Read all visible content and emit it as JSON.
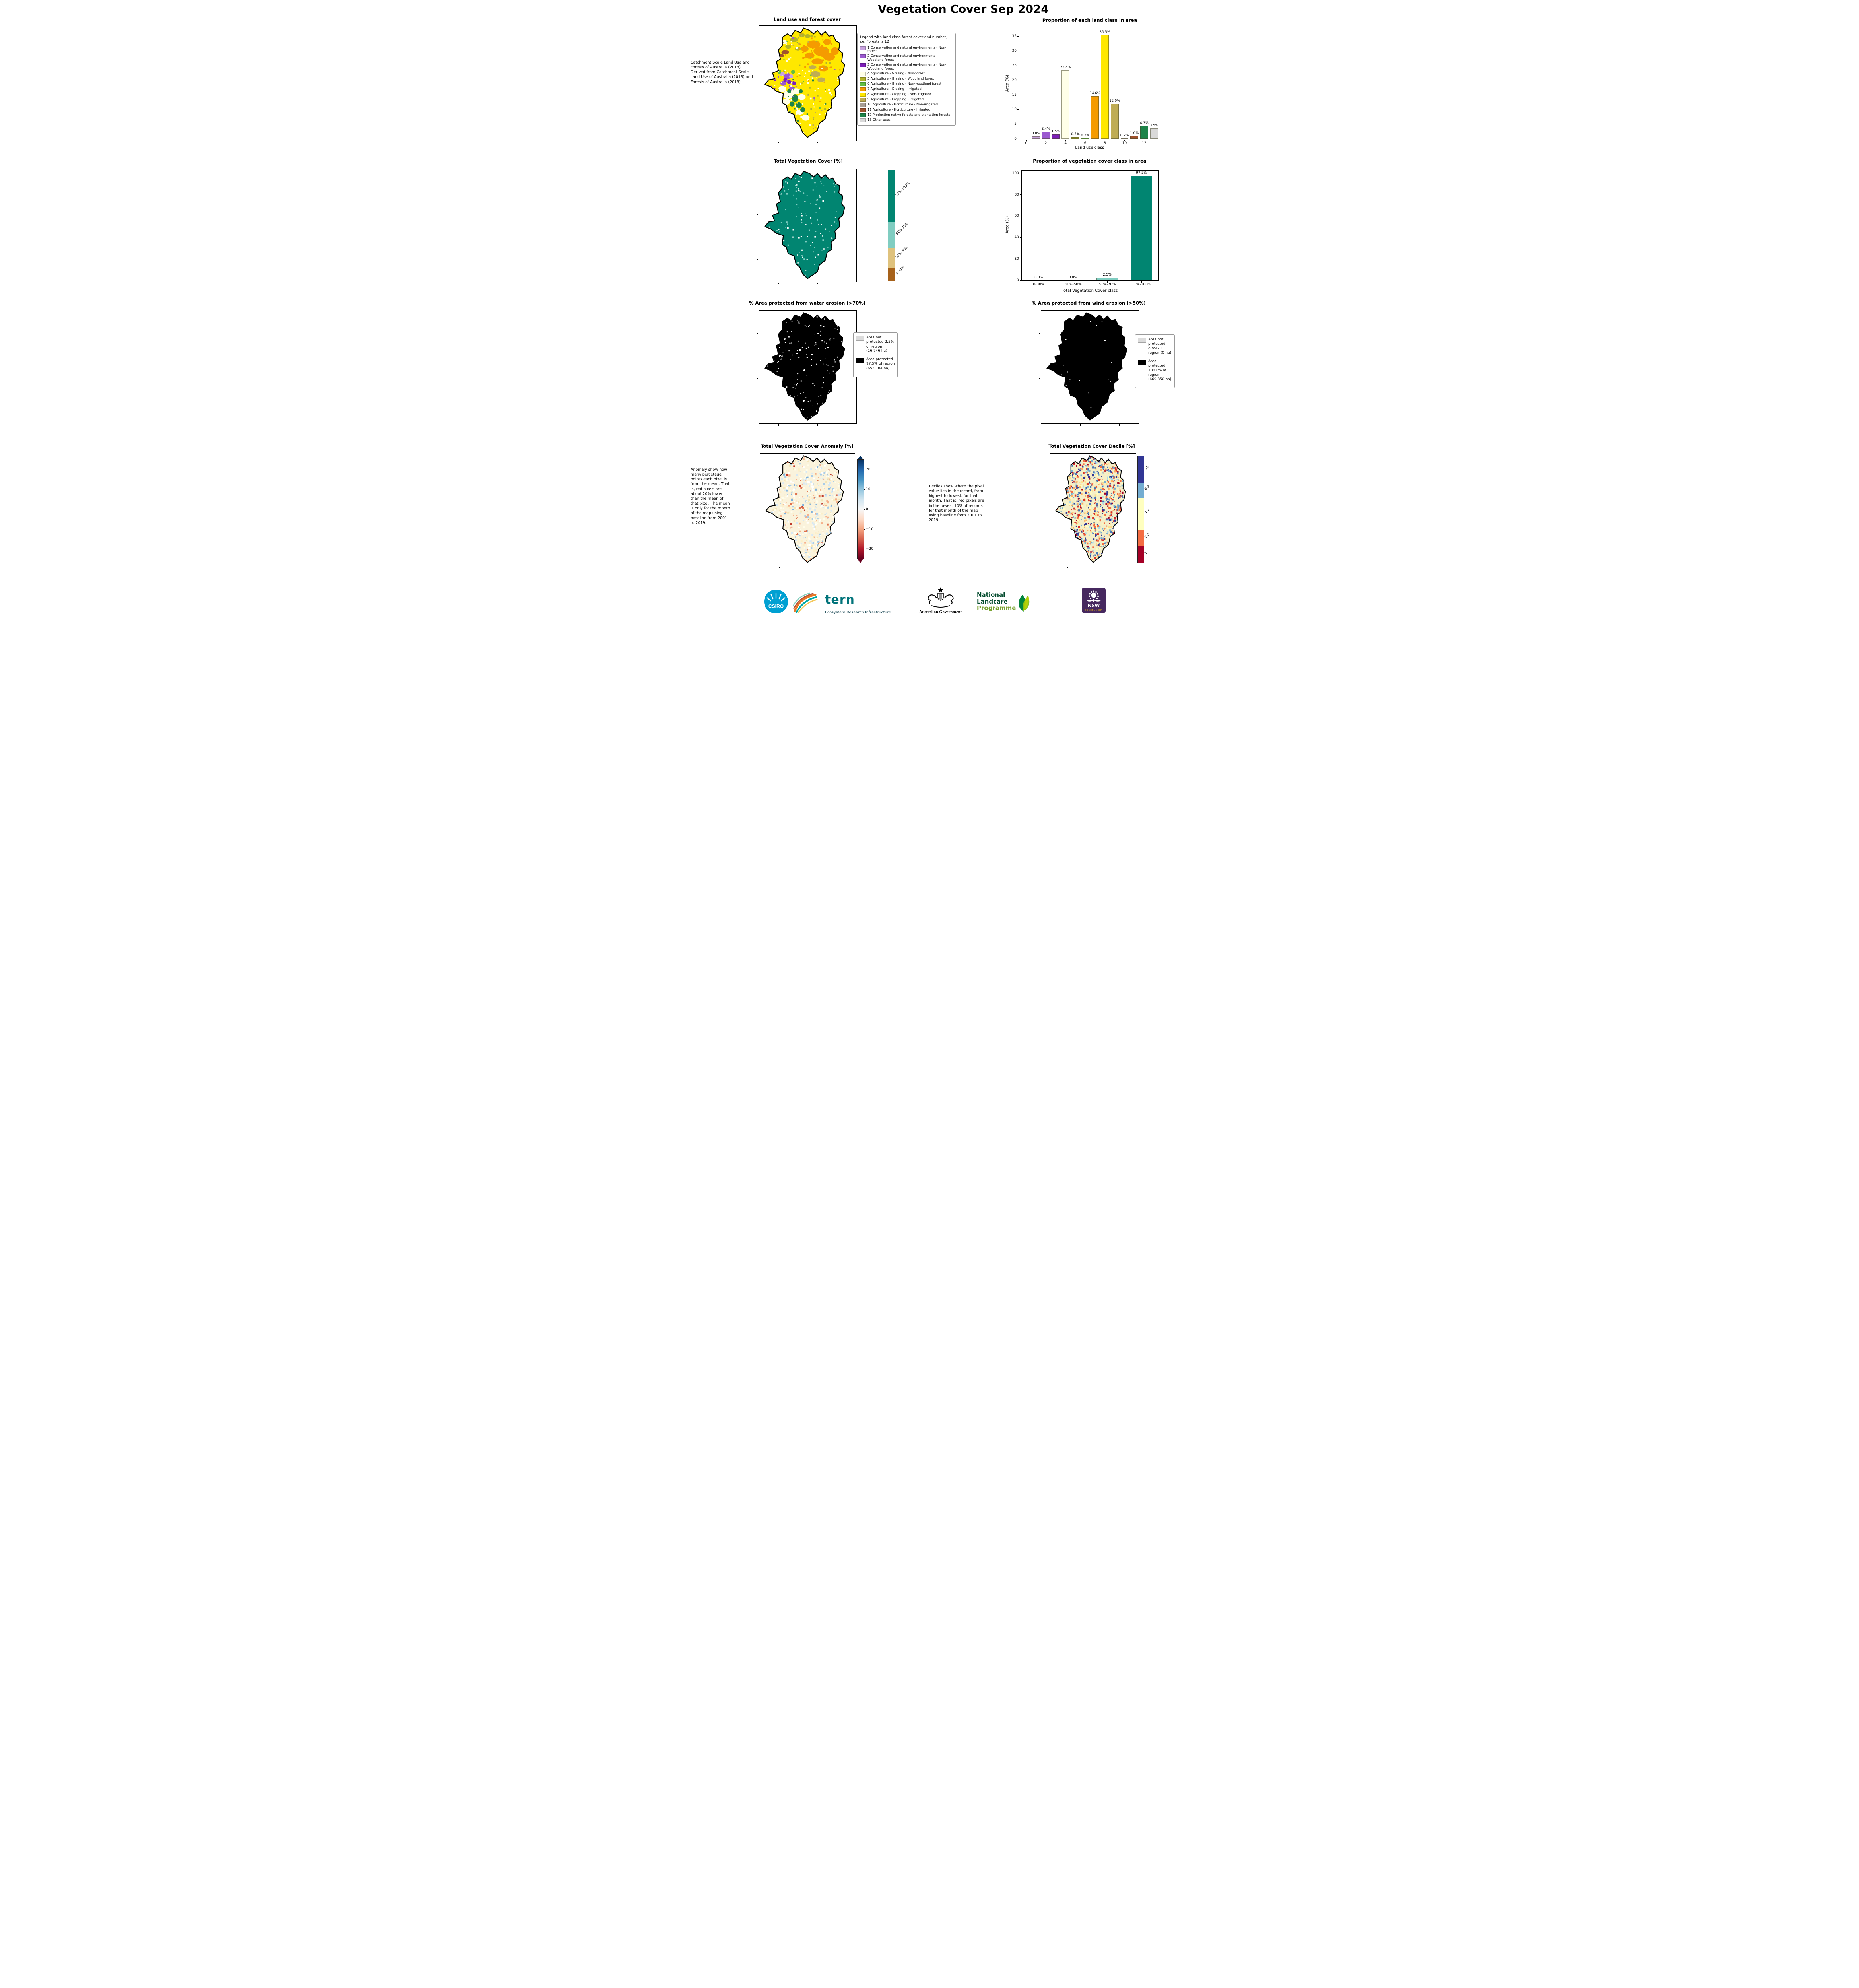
{
  "page_title": "Vegetation Cover Sep 2024",
  "panels": {
    "land_use": {
      "title": "Land use and forest cover",
      "side_note": " Catchment Scale Land Use and Forests of Australia (2018) Derived from Catchment Scale Land Use of Australia (2018) and Forests of Australia (2018)",
      "legend_title": "Legend with land class forest cover and number, i.e. Forests is 12",
      "legend_items": [
        {
          "label": "1 Conservation and natural environments - Non-forest",
          "color": "#C9A3E0"
        },
        {
          "label": "2 Conservation and natural environments - Woodland forest",
          "color": "#9B59D0"
        },
        {
          "label": "3 Conservation and natural environments - Non-Woodland forest",
          "color": "#7D1FB8"
        },
        {
          "label": "4 Agriculture - Grazing - Non-forest",
          "color": "#FFFFE8"
        },
        {
          "label": "5 Agriculture - Grazing - Woodland forest",
          "color": "#B3B32A"
        },
        {
          "label": "6 Agriculture - Grazing - Non-woodland forest",
          "color": "#63BE3F"
        },
        {
          "label": "7 Agriculture - Grazing - Irrigated",
          "color": "#F59B00"
        },
        {
          "label": "8 Agriculture - Cropping - Non-irrigated",
          "color": "#FFE800"
        },
        {
          "label": "9 Agriculture - Cropping - Irrigated",
          "color": "#BFAC54"
        },
        {
          "label": "10 Agriculture - Horticulture - Non-irrigated",
          "color": "#A89E94"
        },
        {
          "label": "11 Agriculture - Horticulture - Irrigated",
          "color": "#A0522D"
        },
        {
          "label": "12 Production native forests and plantation forests",
          "color": "#1D8348"
        },
        {
          "label": "13 Other uses",
          "color": "#D9D9D9"
        }
      ]
    },
    "veg_cover_map": {
      "title": "Total Vegetation Cover [%]",
      "colorbar": {
        "segments": [
          {
            "label": "0-30%",
            "color": "#A6611A",
            "frac": 0.11
          },
          {
            "label": "31%-50%",
            "color": "#DFC27D",
            "frac": 0.19
          },
          {
            "label": "51%-70%",
            "color": "#80CDC1",
            "frac": 0.23
          },
          {
            "label": "71%-100%",
            "color": "#018571",
            "frac": 0.47
          }
        ]
      }
    },
    "water_erosion": {
      "title": "% Area protected from water erosion (>70%)",
      "legend_items": [
        {
          "label": "Area not protected 2.5% of region (16,746 ha)",
          "color": "#DCDCDC"
        },
        {
          "label": "Area protected 97.5% of region (653,104 ha)",
          "color": "#000000"
        }
      ]
    },
    "wind_erosion": {
      "title": "% Area protected from wind erosion (>50%)",
      "legend_items": [
        {
          "label": "Area not protected 0.0% of region (0 ha)",
          "color": "#DCDCDC"
        },
        {
          "label": "Area protected 100.0% of region (669,850 ha)",
          "color": "#000000"
        }
      ]
    },
    "anomaly": {
      "title": "Total Vegetation Cover Anomaly [%]",
      "note": "Anomaly show how many percetage points each pixel is from the mean. That is, red pixels are about 20% lower than the mean of that pixel. The mean is only for the month of the map using baseline from 2001 to 2019.",
      "colorbar": {
        "ticks": [
          "20",
          "10",
          "0",
          "−10",
          "−20"
        ]
      }
    },
    "decile": {
      "title": "Total Vegetation Cover Decile [%]",
      "note": "Deciles show where the pixel value lies in the record, from highest to lowest, for that month. That is, red pixels are in the lowest 10% of records for that month of the map using baseline from 2001 to 2019.",
      "colorbar": {
        "segments": [
          {
            "label": "1",
            "color": "#A50026",
            "frac": 0.16
          },
          {
            "label": "2-3",
            "color": "#F46D43",
            "frac": 0.15
          },
          {
            "label": "4-7",
            "color": "#FFFFBF",
            "frac": 0.3
          },
          {
            "label": "8-9",
            "color": "#74ADD1",
            "frac": 0.14
          },
          {
            "label": "10",
            "color": "#313695",
            "frac": 0.25
          }
        ]
      }
    }
  },
  "chart_data": [
    {
      "type": "bar",
      "title": "Proportion of each land class in area",
      "xlabel": "Land use class",
      "ylabel": "Area (%)",
      "x": [
        1,
        2,
        3,
        4,
        5,
        6,
        7,
        8,
        9,
        10,
        11,
        12,
        13
      ],
      "values": [
        0.8,
        2.4,
        1.5,
        23.4,
        0.5,
        0.2,
        14.6,
        35.5,
        12.0,
        0.2,
        1.0,
        4.3,
        3.5
      ],
      "labels": [
        "0.8%",
        "2.4%",
        "1.5%",
        "23.4%",
        "0.5%",
        "0.2%",
        "14.6%",
        "35.5%",
        "12.0%",
        "0.2%",
        "1.0%",
        "4.3%",
        "3.5%"
      ],
      "bar_colors": [
        "#C9A3E0",
        "#9B59D0",
        "#7D1FB8",
        "#FFFFE8",
        "#B3B32A",
        "#63BE3F",
        "#F59B00",
        "#FFE800",
        "#BFAC54",
        "#A89E94",
        "#A0522D",
        "#1D8348",
        "#D9D9D9"
      ],
      "xticks": [
        0,
        2,
        4,
        6,
        8,
        10,
        12
      ],
      "yticks": [
        0,
        5,
        10,
        15,
        20,
        25,
        30,
        35
      ],
      "xlim": [
        -0.7,
        13.7
      ],
      "ylim": [
        0,
        37.5
      ],
      "grid": false,
      "legend_position": "none"
    },
    {
      "type": "bar",
      "title": "Proportion of vegetation cover class in area",
      "xlabel": "Total Vegetation Cover class",
      "ylabel": "Area (%)",
      "categories": [
        "0-30%",
        "31%-50%",
        "51%-70%",
        "71%-100%"
      ],
      "values": [
        0.0,
        0.0,
        2.5,
        97.5
      ],
      "labels": [
        "0.0%",
        "0.0%",
        "2.5%",
        "97.5%"
      ],
      "bar_colors": [
        "#A6611A",
        "#DFC27D",
        "#80CDC1",
        "#018571"
      ],
      "yticks": [
        0,
        20,
        40,
        60,
        80,
        100
      ],
      "ylim": [
        0,
        102.5
      ],
      "grid": false,
      "legend_position": "none"
    }
  ],
  "footer": {
    "csiro_label": "CSIRO",
    "tern_label": "tern",
    "tern_sub": "Ecosystem Research Infrastructure",
    "aus_gov_label": "Australian Government",
    "landcare_lines": [
      "National",
      "Landcare",
      "Programme"
    ],
    "nsw_label": "NSW",
    "nsw_sub": "GOVERNMENT"
  }
}
